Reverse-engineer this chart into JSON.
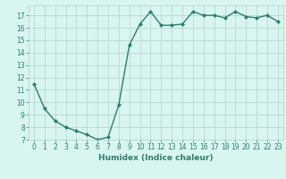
{
  "x": [
    0,
    1,
    2,
    3,
    4,
    5,
    6,
    7,
    8,
    9,
    10,
    11,
    12,
    13,
    14,
    15,
    16,
    17,
    18,
    19,
    20,
    21,
    22,
    23
  ],
  "y": [
    11.5,
    9.5,
    8.5,
    8.0,
    7.7,
    7.4,
    7.0,
    7.2,
    9.8,
    14.6,
    16.3,
    17.3,
    16.2,
    16.2,
    16.3,
    17.3,
    17.0,
    17.0,
    16.8,
    17.3,
    16.9,
    16.8,
    17.0,
    16.5
  ],
  "line_color": "#2e7d6e",
  "marker": "D",
  "marker_size": 2,
  "line_width": 1.0,
  "bg_color": "#d8f5f0",
  "grid_color": "#b8d0cc",
  "xlabel": "Humidex (Indice chaleur)",
  "xlim": [
    -0.5,
    23.5
  ],
  "ylim": [
    7,
    17.8
  ],
  "yticks": [
    7,
    8,
    9,
    10,
    11,
    12,
    13,
    14,
    15,
    16,
    17
  ],
  "xticks": [
    0,
    1,
    2,
    3,
    4,
    5,
    6,
    7,
    8,
    9,
    10,
    11,
    12,
    13,
    14,
    15,
    16,
    17,
    18,
    19,
    20,
    21,
    22,
    23
  ],
  "tick_fontsize": 5.5,
  "label_fontsize": 6.5,
  "label_color": "#2e7d6e"
}
